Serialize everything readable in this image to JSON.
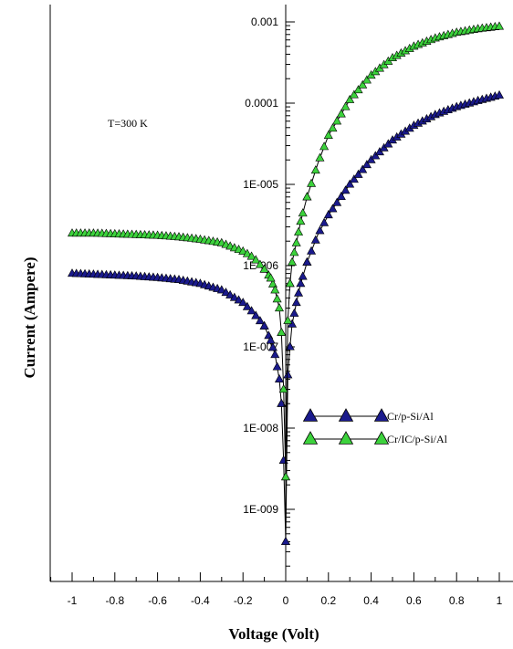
{
  "chart_data": {
    "type": "scatter",
    "xlabel": "Voltage (Volt)",
    "ylabel": "Current (Ampere)",
    "annotation": "T=300 K",
    "scale": {
      "y": "log"
    },
    "xlim": [
      -1.15,
      1.1
    ],
    "ylim": [
      1e-10,
      0.002
    ],
    "x_ticks": [
      -1,
      -0.8,
      -0.6,
      -0.4,
      -0.2,
      0,
      0.2,
      0.4,
      0.6,
      0.8,
      1
    ],
    "x_tick_labels": [
      "-1",
      "-0.8",
      "-0.6",
      "-0.4",
      "-0.2",
      "0",
      "0.2",
      "0.4",
      "0.6",
      "0.8",
      "1"
    ],
    "y_ticks": [
      1e-09,
      1e-08,
      1e-07,
      1e-06,
      1e-05,
      0.0001,
      0.001
    ],
    "y_tick_labels": [
      "1E-009",
      "1E-008",
      "1E-007",
      "1E-006",
      "1E-005",
      "0.0001",
      "0.001"
    ],
    "legend": {
      "position": "center-right",
      "labels": [
        "Cr/p-Si/Al",
        "Cr/IC/p-Si/Al"
      ]
    },
    "series": [
      {
        "name": "Cr/p-Si/Al",
        "marker_color": "#1a1a8c",
        "x": [
          -1.0,
          -0.9,
          -0.8,
          -0.7,
          -0.6,
          -0.5,
          -0.4,
          -0.3,
          -0.2,
          -0.15,
          -0.1,
          -0.07,
          -0.05,
          -0.03,
          -0.02,
          -0.01,
          0.0,
          0.01,
          0.02,
          0.03,
          0.05,
          0.07,
          0.1,
          0.15,
          0.2,
          0.3,
          0.4,
          0.5,
          0.6,
          0.7,
          0.8,
          0.9,
          1.0
        ],
        "y": [
          8e-07,
          7.8e-07,
          7.6e-07,
          7.4e-07,
          7.1e-07,
          6.7e-07,
          6e-07,
          5e-07,
          3.5e-07,
          2.6e-07,
          1.8e-07,
          1.2e-07,
          8e-08,
          4e-08,
          2e-08,
          4e-09,
          4e-10,
          4.5e-08,
          1e-07,
          1.9e-07,
          3.5e-07,
          6e-07,
          1.1e-06,
          2.4e-06,
          4.2e-06,
          1e-05,
          2e-05,
          3.5e-05,
          5.3e-05,
          7.2e-05,
          9e-05,
          0.000107,
          0.000125
        ]
      },
      {
        "name": "Cr/IC/p-Si/Al",
        "marker_color": "#3cd23c",
        "x": [
          -1.0,
          -0.9,
          -0.8,
          -0.7,
          -0.6,
          -0.5,
          -0.4,
          -0.3,
          -0.2,
          -0.15,
          -0.1,
          -0.07,
          -0.05,
          -0.03,
          -0.02,
          -0.01,
          0.0,
          0.01,
          0.02,
          0.03,
          0.05,
          0.07,
          0.1,
          0.15,
          0.2,
          0.3,
          0.4,
          0.5,
          0.6,
          0.7,
          0.8,
          0.9,
          1.0
        ],
        "y": [
          2.5e-06,
          2.5e-06,
          2.45e-06,
          2.4e-06,
          2.35e-06,
          2.25e-06,
          2.1e-06,
          1.9e-06,
          1.5e-06,
          1.25e-06,
          9e-07,
          7e-07,
          5e-07,
          3e-07,
          1.5e-07,
          3e-08,
          2.5e-09,
          2.1e-07,
          6e-07,
          1.1e-06,
          1.9e-06,
          3.5e-06,
          7e-06,
          1.8e-05,
          4e-05,
          0.00011,
          0.00022,
          0.00036,
          0.0005,
          0.00063,
          0.00074,
          0.00082,
          0.00088
        ]
      }
    ]
  }
}
